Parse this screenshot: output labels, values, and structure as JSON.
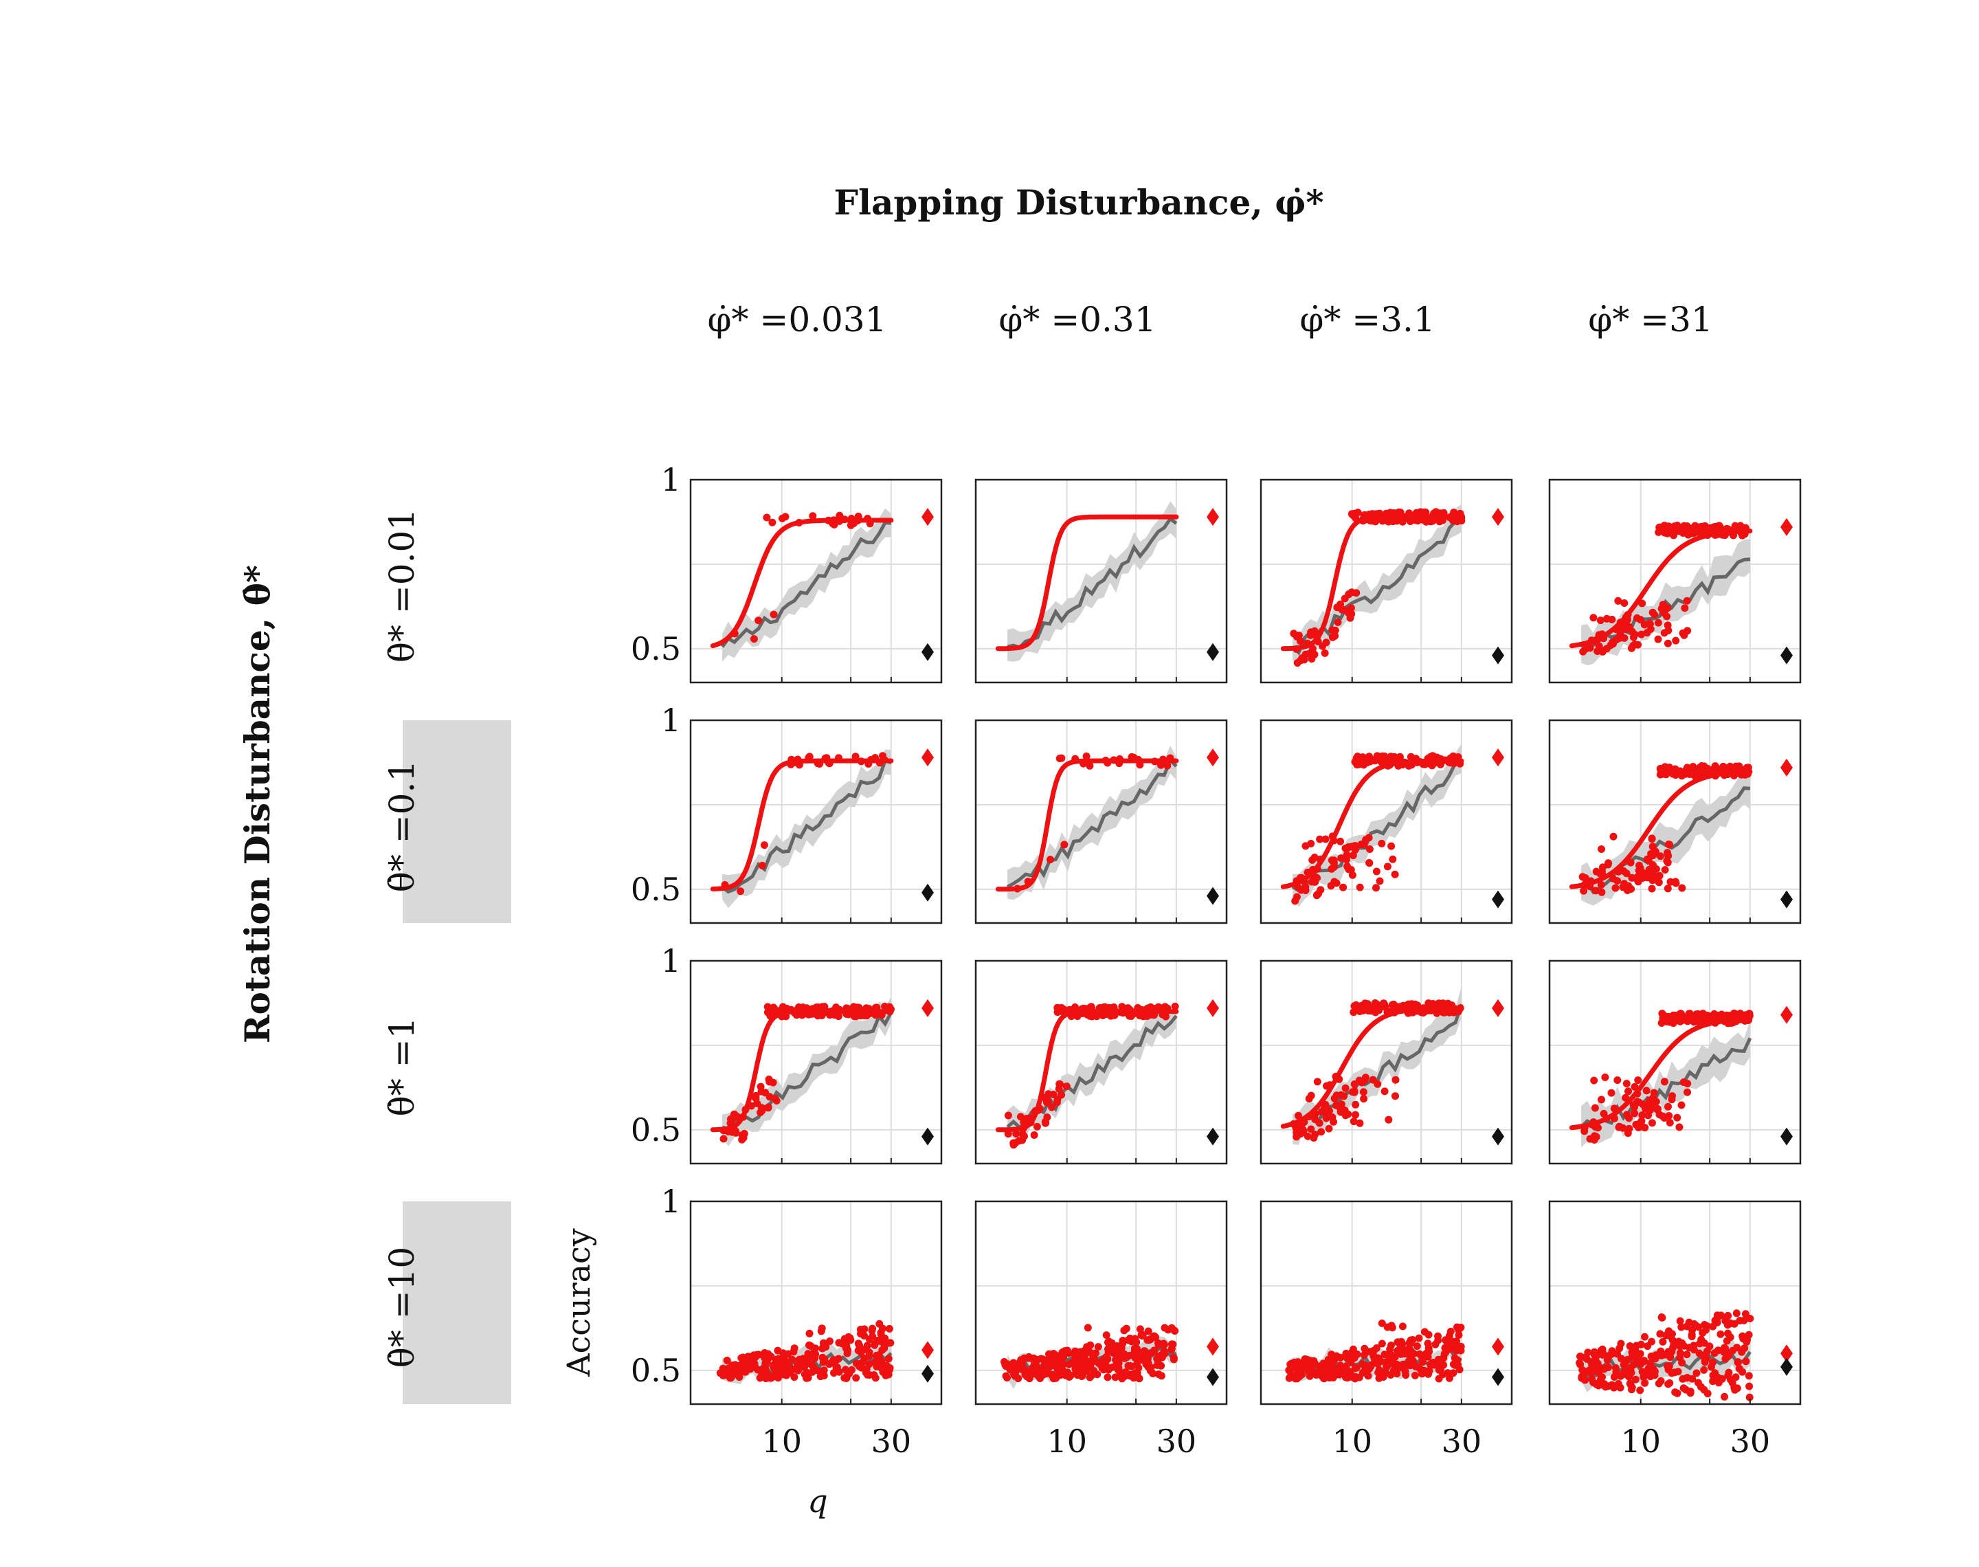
{
  "figure": {
    "title": "Flapping Disturbance, φ̇*",
    "row_title": "Rotation Disturbance, θ̇*",
    "column_labels": [
      "φ̇* =0.031",
      "φ̇* =0.31",
      "φ̇* =3.1",
      "φ̇* =31"
    ],
    "row_labels": [
      "θ̇* =0.01",
      "θ̇* =0.1",
      "θ̇* =1",
      "θ̇* =10"
    ],
    "highlighted_rows": [
      1,
      3
    ],
    "highlight_color": "#d9d9d9",
    "xlabel": "q",
    "ylabel": "Accuracy",
    "colors": {
      "model_fit": "#ee1111",
      "model_points": "#ee1111",
      "baseline_line": "#666666",
      "baseline_band": "#d3d3d3",
      "marker_red": "#ee1111",
      "marker_black": "#111111",
      "grid": "#dddddd",
      "axis": "#222222"
    }
  },
  "chart_data": {
    "type": "line",
    "layout": "4x4 small multiples",
    "x_scale": "log",
    "xlim": [
      4,
      34
    ],
    "ylim": [
      0.4,
      1.0
    ],
    "x_ticks": [
      10,
      30
    ],
    "x_tick_labels": [
      "10",
      "30"
    ],
    "y_ticks": [
      0.5,
      1
    ],
    "y_tick_labels": [
      "0.5",
      "1"
    ],
    "grid": true,
    "panels": [
      {
        "row": 0,
        "col": 0,
        "fit": {
          "mid": 7.6,
          "steep": 9,
          "top": 0.88
        },
        "baseline": {
          "x0": 5.5,
          "x1": 30,
          "ymax": 0.88,
          "halfwidth": 0.04
        },
        "scatter": "plateau",
        "red_diamond": 0.89,
        "black_diamond": 0.49
      },
      {
        "row": 0,
        "col": 1,
        "fit": {
          "mid": 8.3,
          "steep": 16,
          "top": 0.89
        },
        "baseline": {
          "x0": 5.5,
          "x1": 30,
          "ymax": 0.89,
          "halfwidth": 0.04
        },
        "scatter": "none",
        "red_diamond": 0.89,
        "black_diamond": 0.49
      },
      {
        "row": 0,
        "col": 2,
        "fit": {
          "mid": 8.4,
          "steep": 14,
          "top": 0.89
        },
        "baseline": {
          "x0": 5.5,
          "x1": 30,
          "ymax": 0.88,
          "halfwidth": 0.04
        },
        "scatter": "plateau-dense",
        "red_diamond": 0.89,
        "black_diamond": 0.48
      },
      {
        "row": 0,
        "col": 3,
        "fit": {
          "mid": 10.5,
          "steep": 5,
          "top": 0.85
        },
        "baseline": {
          "x0": 5.5,
          "x1": 30,
          "ymax": 0.76,
          "halfwidth": 0.05
        },
        "scatter": "plateau-dense",
        "red_diamond": 0.86,
        "black_diamond": 0.48
      },
      {
        "row": 1,
        "col": 0,
        "fit": {
          "mid": 7.9,
          "steep": 14,
          "top": 0.88
        },
        "baseline": {
          "x0": 5.5,
          "x1": 30,
          "ymax": 0.88,
          "halfwidth": 0.04
        },
        "scatter": "plateau",
        "red_diamond": 0.89,
        "black_diamond": 0.49
      },
      {
        "row": 1,
        "col": 1,
        "fit": {
          "mid": 8.2,
          "steep": 18,
          "top": 0.88
        },
        "baseline": {
          "x0": 5.5,
          "x1": 30,
          "ymax": 0.88,
          "halfwidth": 0.04
        },
        "scatter": "plateau",
        "red_diamond": 0.89,
        "black_diamond": 0.48
      },
      {
        "row": 1,
        "col": 2,
        "fit": {
          "mid": 8.8,
          "steep": 7,
          "top": 0.88
        },
        "baseline": {
          "x0": 5.5,
          "x1": 30,
          "ymax": 0.87,
          "halfwidth": 0.04
        },
        "scatter": "plateau-dense",
        "red_diamond": 0.89,
        "black_diamond": 0.47
      },
      {
        "row": 1,
        "col": 3,
        "fit": {
          "mid": 10.8,
          "steep": 5,
          "top": 0.85
        },
        "baseline": {
          "x0": 5.5,
          "x1": 30,
          "ymax": 0.79,
          "halfwidth": 0.05
        },
        "scatter": "plateau-dense",
        "red_diamond": 0.86,
        "black_diamond": 0.47
      },
      {
        "row": 2,
        "col": 0,
        "fit": {
          "mid": 7.7,
          "steep": 16,
          "top": 0.85
        },
        "baseline": {
          "x0": 5.5,
          "x1": 30,
          "ymax": 0.85,
          "halfwidth": 0.04
        },
        "scatter": "plateau-dense",
        "red_diamond": 0.86,
        "black_diamond": 0.48
      },
      {
        "row": 2,
        "col": 1,
        "fit": {
          "mid": 8.1,
          "steep": 18,
          "top": 0.85
        },
        "baseline": {
          "x0": 5.5,
          "x1": 30,
          "ymax": 0.85,
          "halfwidth": 0.04
        },
        "scatter": "plateau-dense",
        "red_diamond": 0.86,
        "black_diamond": 0.48
      },
      {
        "row": 2,
        "col": 2,
        "fit": {
          "mid": 9.0,
          "steep": 6,
          "top": 0.86
        },
        "baseline": {
          "x0": 5.5,
          "x1": 30,
          "ymax": 0.85,
          "halfwidth": 0.04
        },
        "scatter": "plateau-dense",
        "red_diamond": 0.86,
        "black_diamond": 0.48
      },
      {
        "row": 2,
        "col": 3,
        "fit": {
          "mid": 11.0,
          "steep": 5,
          "top": 0.83
        },
        "baseline": {
          "x0": 5.5,
          "x1": 30,
          "ymax": 0.76,
          "halfwidth": 0.05
        },
        "scatter": "plateau-dense",
        "red_diamond": 0.84,
        "black_diamond": 0.48
      },
      {
        "row": 3,
        "col": 0,
        "fit": null,
        "baseline": {
          "x0": 5.5,
          "x1": 30,
          "ymax": 0.55,
          "halfwidth": 0.03
        },
        "scatter": "noise",
        "red_diamond": 0.56,
        "black_diamond": 0.49
      },
      {
        "row": 3,
        "col": 1,
        "fit": null,
        "baseline": {
          "x0": 5.5,
          "x1": 30,
          "ymax": 0.56,
          "halfwidth": 0.03
        },
        "scatter": "noise",
        "red_diamond": 0.57,
        "black_diamond": 0.48
      },
      {
        "row": 3,
        "col": 2,
        "fit": null,
        "baseline": {
          "x0": 5.5,
          "x1": 30,
          "ymax": 0.55,
          "halfwidth": 0.03
        },
        "scatter": "noise",
        "red_diamond": 0.57,
        "black_diamond": 0.48
      },
      {
        "row": 3,
        "col": 3,
        "fit": null,
        "baseline": {
          "x0": 5.5,
          "x1": 30,
          "ymax": 0.54,
          "halfwidth": 0.04
        },
        "scatter": "noise-wide",
        "red_diamond": 0.55,
        "black_diamond": 0.51
      }
    ]
  }
}
